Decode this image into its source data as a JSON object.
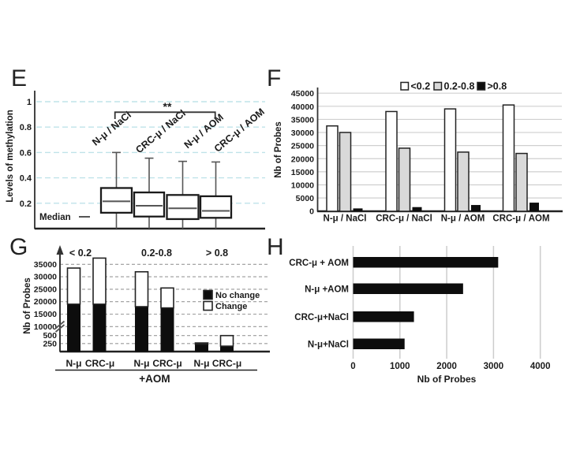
{
  "panels": {
    "E": "E",
    "F": "F",
    "G": "G",
    "H": "H"
  },
  "colors": {
    "grid_cyan": "#bfe3e9",
    "grid_gray": "#cfcfcf",
    "grid_dash_gray": "#9a9a9a",
    "bar_white": "#ffffff",
    "bar_gray": "#d9d9d9",
    "bar_black": "#0d0d0d",
    "axis": "#222222",
    "text": "#1a1a1a"
  },
  "chart_data": [
    {
      "id": "E",
      "type": "boxplot",
      "ylabel": "Levels of methylation",
      "yticks": [
        1,
        0.8,
        0.6,
        0.4,
        0.2
      ],
      "ylim": [
        0,
        1.05
      ],
      "grid": "dashed-cyan",
      "categories": [
        "N-μ / NaCl",
        "CRC-μ / NaCl",
        "N-μ / AOM",
        "CRC-μ / AOM"
      ],
      "boxes": [
        {
          "q1": 0.125,
          "median": 0.215,
          "q3": 0.32,
          "whisker_high": 0.6,
          "whisker_low": 0
        },
        {
          "q1": 0.095,
          "median": 0.18,
          "q3": 0.285,
          "whisker_high": 0.555,
          "whisker_low": 0
        },
        {
          "q1": 0.075,
          "median": 0.16,
          "q3": 0.265,
          "whisker_high": 0.53,
          "whisker_low": 0
        },
        {
          "q1": 0.085,
          "median": 0.14,
          "q3": 0.255,
          "whisker_high": 0.525,
          "whisker_low": 0
        }
      ],
      "significance": {
        "label": "**",
        "from": "N-μ / NaCl",
        "to": "CRC-μ / AOM"
      },
      "median_legend": "Median"
    },
    {
      "id": "F",
      "type": "bar",
      "ylabel": "Nb of Probes",
      "categories": [
        "N-μ / NaCl",
        "CRC-μ / NaCl",
        "N-μ / AOM",
        "CRC-μ / AOM"
      ],
      "series": [
        {
          "name": "<0.2",
          "color": "#ffffff",
          "values": [
            32500,
            38000,
            39000,
            40500
          ]
        },
        {
          "name": "0.2-0.8",
          "color": "#d9d9d9",
          "values": [
            30000,
            24000,
            22500,
            22000
          ]
        },
        {
          "name": ">0.8",
          "color": "#0d0d0d",
          "values": [
            1000,
            1500,
            2300,
            3200
          ]
        }
      ],
      "ylim": [
        0,
        45000
      ],
      "ytick_step": 5000,
      "legend_position": "top",
      "grid": "solid-gray"
    },
    {
      "id": "G",
      "type": "stacked-bar-broken-axis",
      "ylabel": "Nb of Probes",
      "group_labels": [
        "< 0.2",
        "0.2-0.8",
        "> 0.8"
      ],
      "categories": [
        "N-μ",
        "CRC-μ",
        "N-μ",
        "CRC-μ",
        "N-μ",
        "CRC-μ"
      ],
      "series": [
        {
          "name": "No change",
          "color": "#0d0d0d",
          "values": [
            19000,
            19000,
            18000,
            17500,
            230,
            170
          ]
        },
        {
          "name": "Change",
          "color": "#ffffff",
          "values": [
            14500,
            18500,
            14000,
            8000,
            40,
            330
          ]
        }
      ],
      "yticks": [
        250,
        500,
        10000,
        15000,
        20000,
        25000,
        30000,
        35000
      ],
      "axis_break_between": [
        500,
        10000
      ],
      "x_annotation": "+AOM",
      "grid": "dashed-gray"
    },
    {
      "id": "H",
      "type": "horizontal-bar",
      "xlabel": "Nb of Probes",
      "categories": [
        "CRC-μ + AOM",
        "N-μ +AOM",
        "CRC-μ+NaCl",
        "N-μ+NaCl"
      ],
      "values": [
        3100,
        2350,
        1300,
        1100
      ],
      "xlim": [
        0,
        4000
      ],
      "xtick_step": 1000,
      "bar_color": "#0d0d0d",
      "grid": "solid-gray"
    }
  ]
}
